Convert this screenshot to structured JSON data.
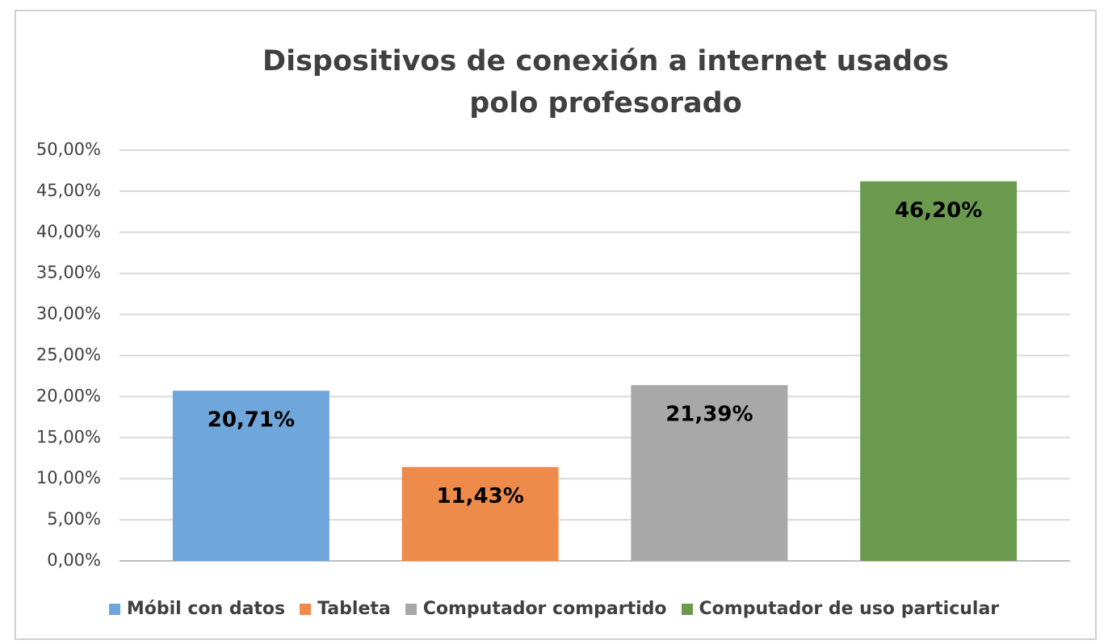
{
  "chart_data": {
    "type": "bar",
    "title": "Dispositivos de conexión a internet usados polo profesorado",
    "categories": [
      null
    ],
    "series": [
      {
        "name": "Móbil con datos",
        "color": "#6fa6db",
        "values": [
          20.71
        ],
        "value_labels": [
          "20,71%"
        ]
      },
      {
        "name": "Tableta",
        "color": "#ef8b4a",
        "values": [
          11.43
        ],
        "value_labels": [
          "11,43%"
        ]
      },
      {
        "name": "Computador compartido",
        "color": "#a8a8a8",
        "values": [
          21.39
        ],
        "value_labels": [
          "21,39%"
        ]
      },
      {
        "name": "Computador de uso particular",
        "color": "#6b9a4f",
        "values": [
          46.2
        ],
        "value_labels": [
          "46,20%"
        ]
      }
    ],
    "ylim": [
      0,
      50
    ],
    "yticks": [
      {
        "value": 0,
        "label": "0,00%"
      },
      {
        "value": 5,
        "label": "5,00%"
      },
      {
        "value": 10,
        "label": "10,00%"
      },
      {
        "value": 15,
        "label": "15,00%"
      },
      {
        "value": 20,
        "label": "20,00%"
      },
      {
        "value": 25,
        "label": "25,00%"
      },
      {
        "value": 30,
        "label": "30,00%"
      },
      {
        "value": 35,
        "label": "35,00%"
      },
      {
        "value": 40,
        "label": "40,00%"
      },
      {
        "value": 45,
        "label": "45,00%"
      },
      {
        "value": 50,
        "label": "50,00%"
      }
    ],
    "grid": true,
    "legend": "bottom"
  }
}
